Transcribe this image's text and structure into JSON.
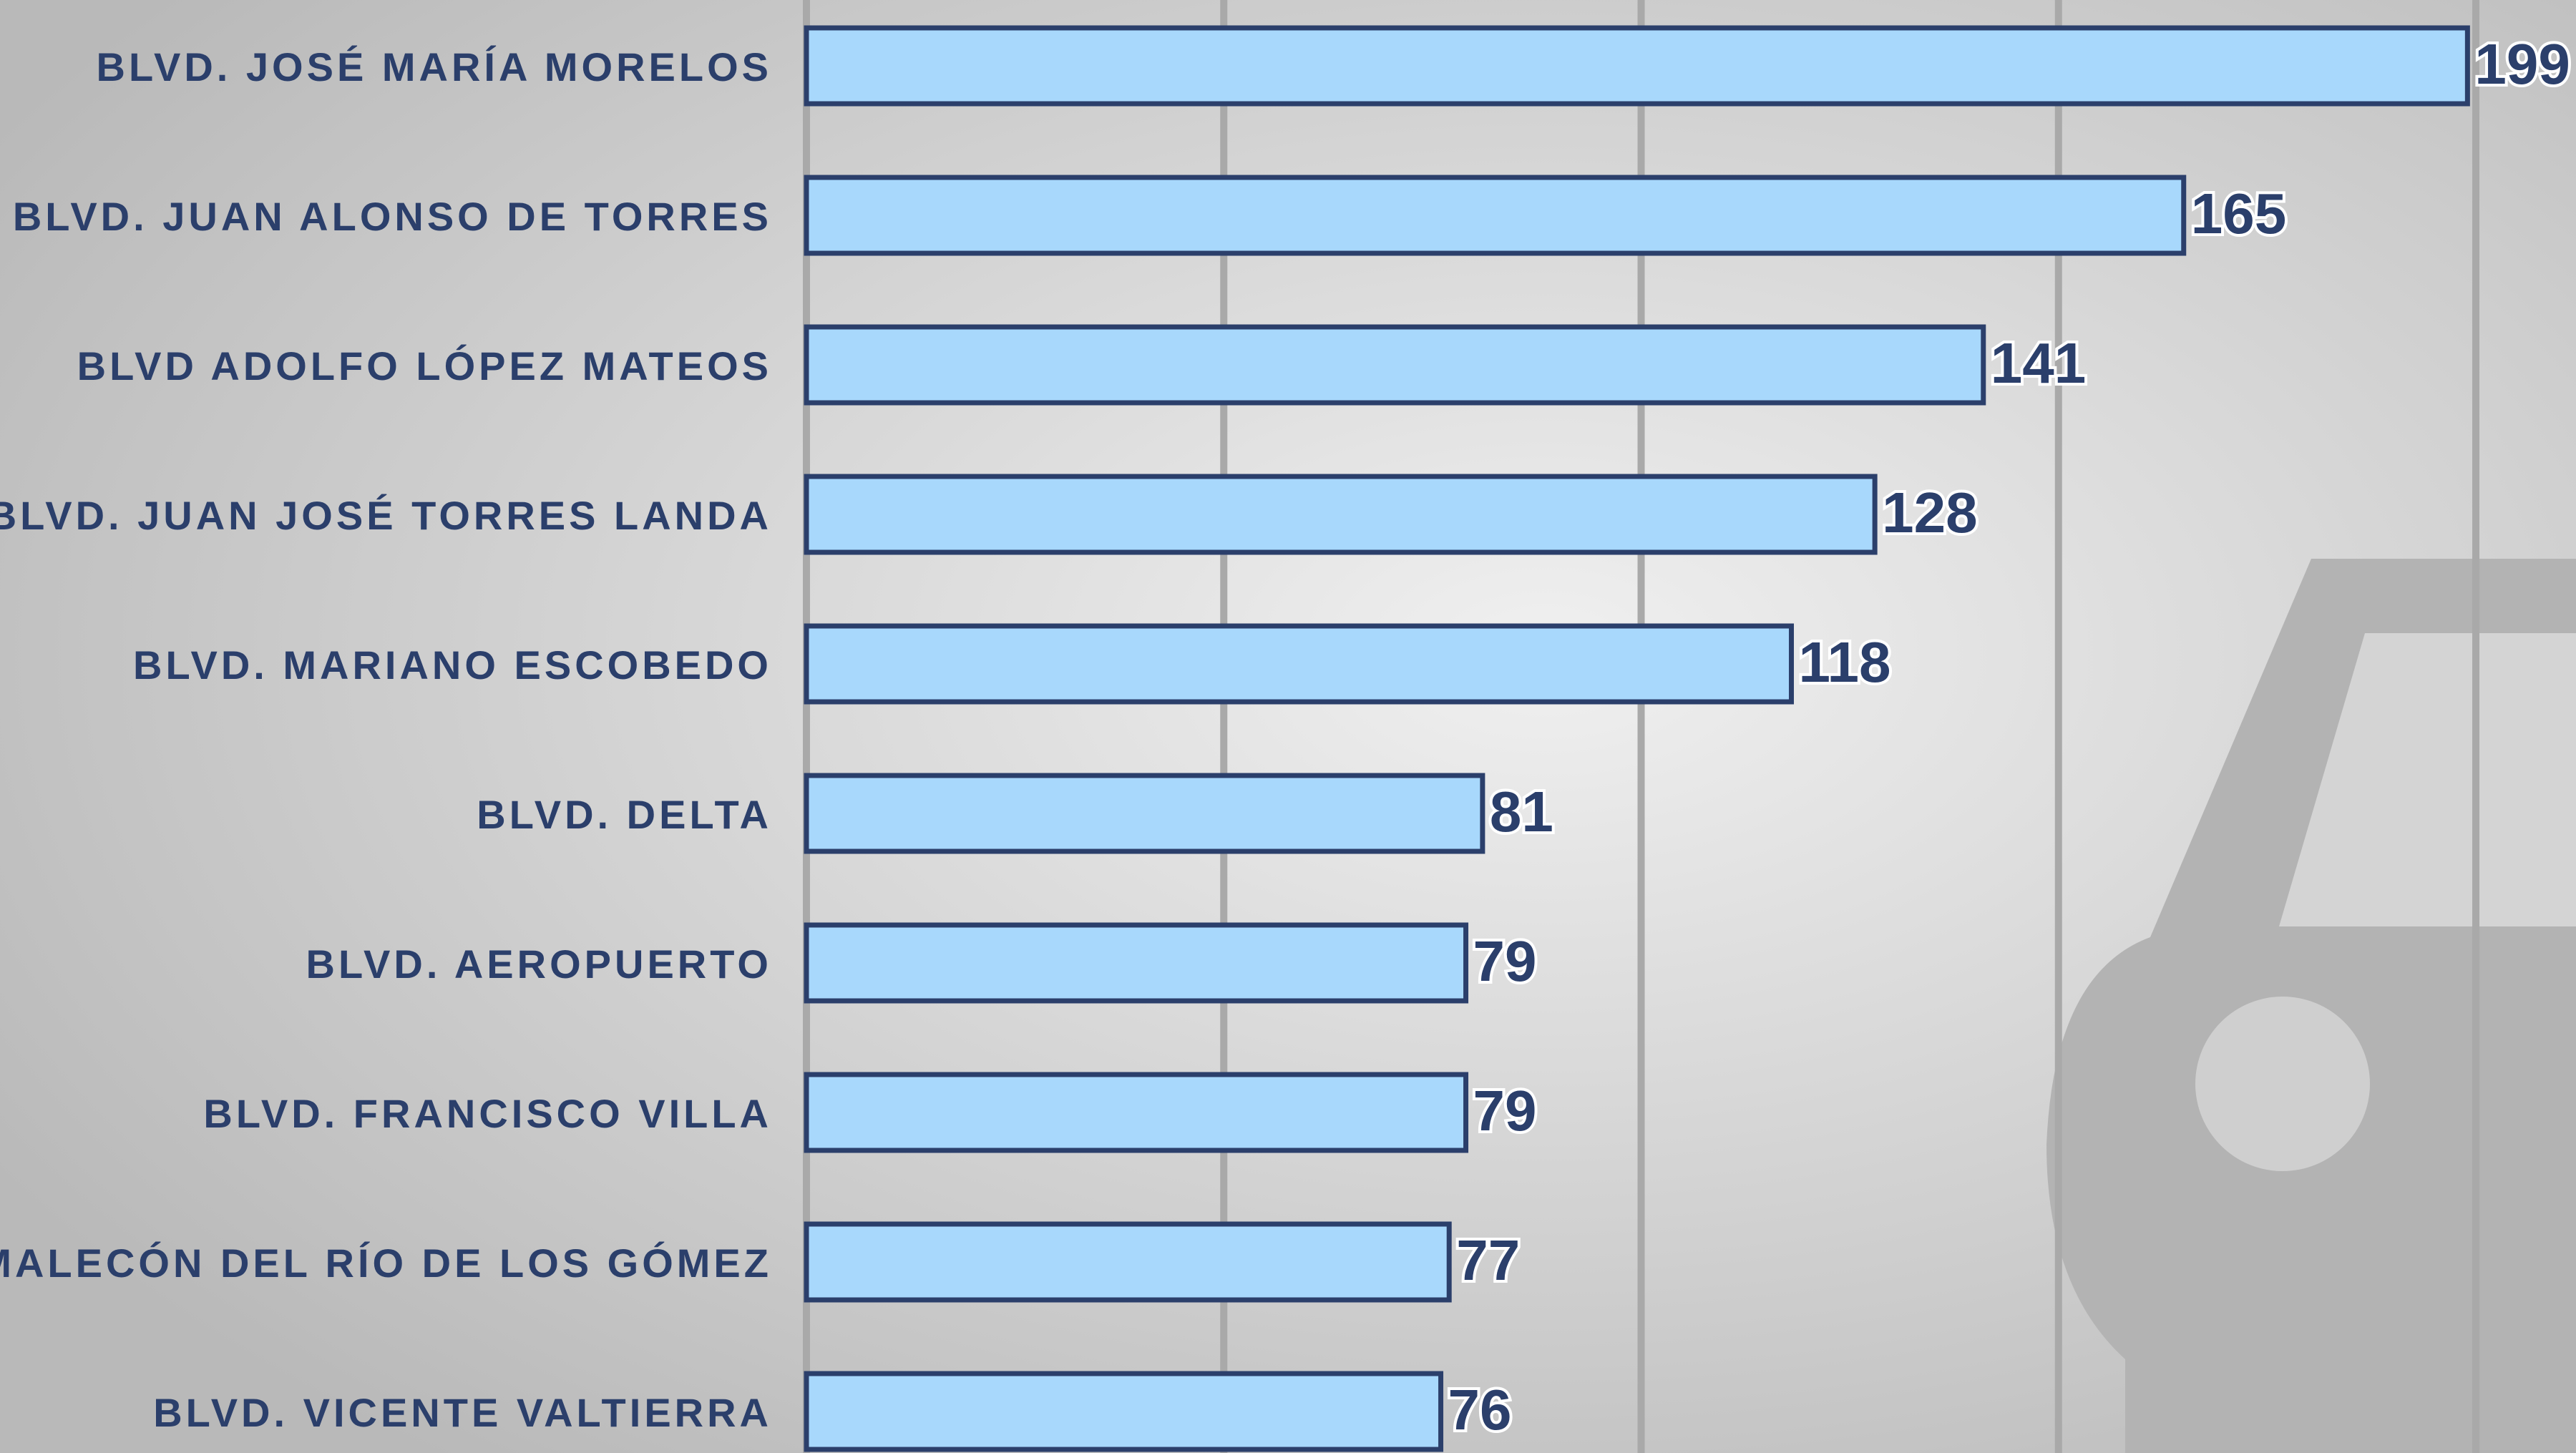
{
  "chart_data": {
    "type": "bar",
    "orientation": "horizontal",
    "categories": [
      "BLVD. JOSÉ MARÍA MORELOS",
      "BLVD. JUAN ALONSO DE TORRES",
      "BLVD ADOLFO LÓPEZ MATEOS",
      "BLVD. JUAN JOSÉ TORRES LANDA",
      "BLVD. MARIANO ESCOBEDO",
      "BLVD. DELTA",
      "BLVD. AEROPUERTO",
      "BLVD. FRANCISCO VILLA",
      "MALECÓN DEL RÍO DE LOS GÓMEZ",
      "BLVD. VICENTE VALTIERRA"
    ],
    "values": [
      199,
      165,
      141,
      128,
      118,
      81,
      79,
      79,
      77,
      76
    ],
    "color": "#a8d8fc",
    "edge_color": "#2b3f6b",
    "xlim": [
      0,
      212
    ],
    "xticks": [
      0,
      50,
      100,
      150,
      200
    ],
    "grid": true
  }
}
